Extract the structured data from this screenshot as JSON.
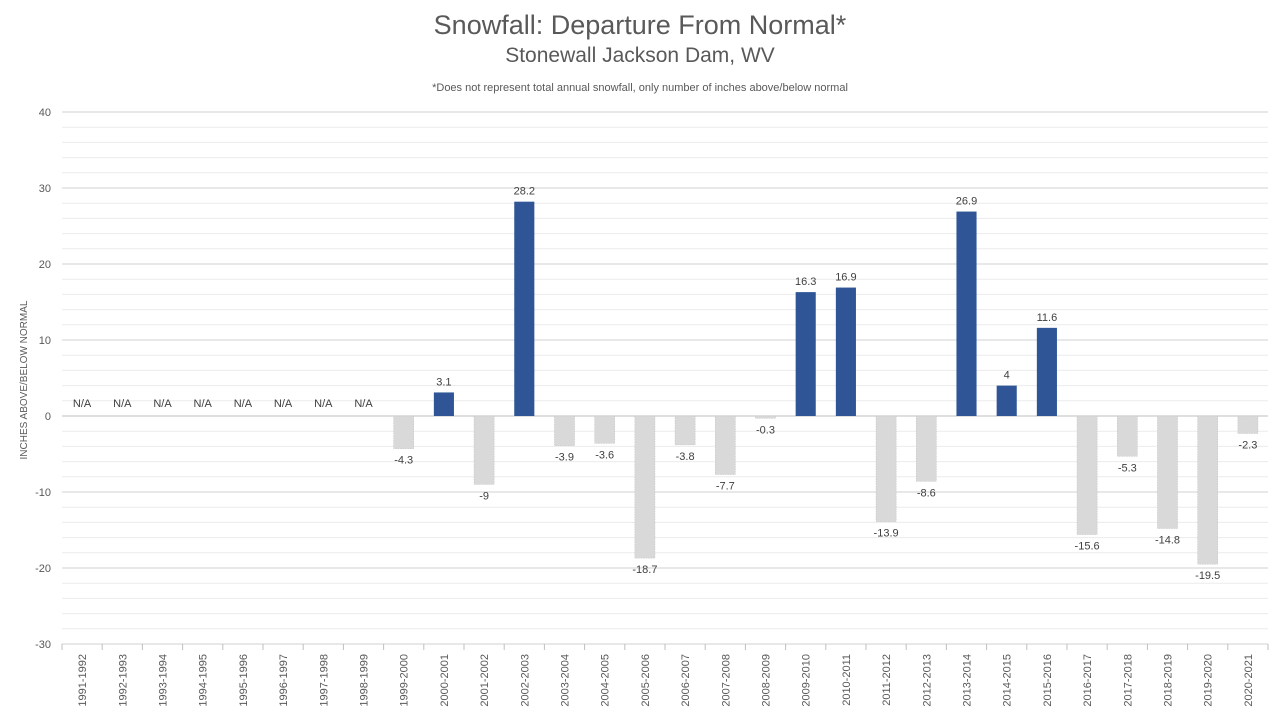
{
  "chart_data": {
    "type": "bar",
    "title": "Snowfall: Departure From Normal*",
    "subtitle": "Stonewall Jackson Dam, WV",
    "note": "*Does not represent  total annual snowfall, only number of inches above/below normal",
    "ylabel": "INCHES ABOVE/BELOW NORMAL",
    "xlabel": "",
    "ylim": [
      -30,
      40
    ],
    "yticks": [
      -30,
      -20,
      -10,
      0,
      10,
      20,
      30,
      40
    ],
    "minor_grid_step": 2,
    "categories": [
      "1991-1992",
      "1992-1993",
      "1993-1994",
      "1994-1995",
      "1995-1996",
      "1996-1997",
      "1997-1998",
      "1998-1999",
      "1999-2000",
      "2000-2001",
      "2001-2002",
      "2002-2003",
      "2003-2004",
      "2004-2005",
      "2005-2006",
      "2006-2007",
      "2007-2008",
      "2008-2009",
      "2009-2010",
      "2010-2011",
      "2011-2012",
      "2012-2013",
      "2013-2014",
      "2014-2015",
      "2015-2016",
      "2016-2017",
      "2017-2018",
      "2018-2019",
      "2019-2020",
      "2020-2021"
    ],
    "values": [
      null,
      null,
      null,
      null,
      null,
      null,
      null,
      null,
      -4.3,
      3.1,
      -9,
      28.2,
      -3.9,
      -3.6,
      -18.7,
      -3.8,
      -7.7,
      -0.3,
      16.3,
      16.9,
      -13.9,
      -8.6,
      26.9,
      4,
      11.6,
      -15.6,
      -5.3,
      -14.8,
      -19.5,
      -2.3
    ],
    "labels": [
      "N/A",
      "N/A",
      "N/A",
      "N/A",
      "N/A",
      "N/A",
      "N/A",
      "N/A",
      "-4.3",
      "3.1",
      "-9",
      "28.2",
      "-3.9",
      "-3.6",
      "-18.7",
      "-3.8",
      "-7.7",
      "-0.3",
      "16.3",
      "16.9",
      "-13.9",
      "-8.6",
      "26.9",
      "4",
      "11.6",
      "-15.6",
      "-5.3",
      "-14.8",
      "-19.5",
      "-2.3"
    ],
    "colors": {
      "positive": "#2F5597",
      "negative": "#D9D9D9",
      "negative_border": "#BFBFBF",
      "grid": "#D9D9D9",
      "text": "#595959",
      "label": "#404040"
    }
  }
}
